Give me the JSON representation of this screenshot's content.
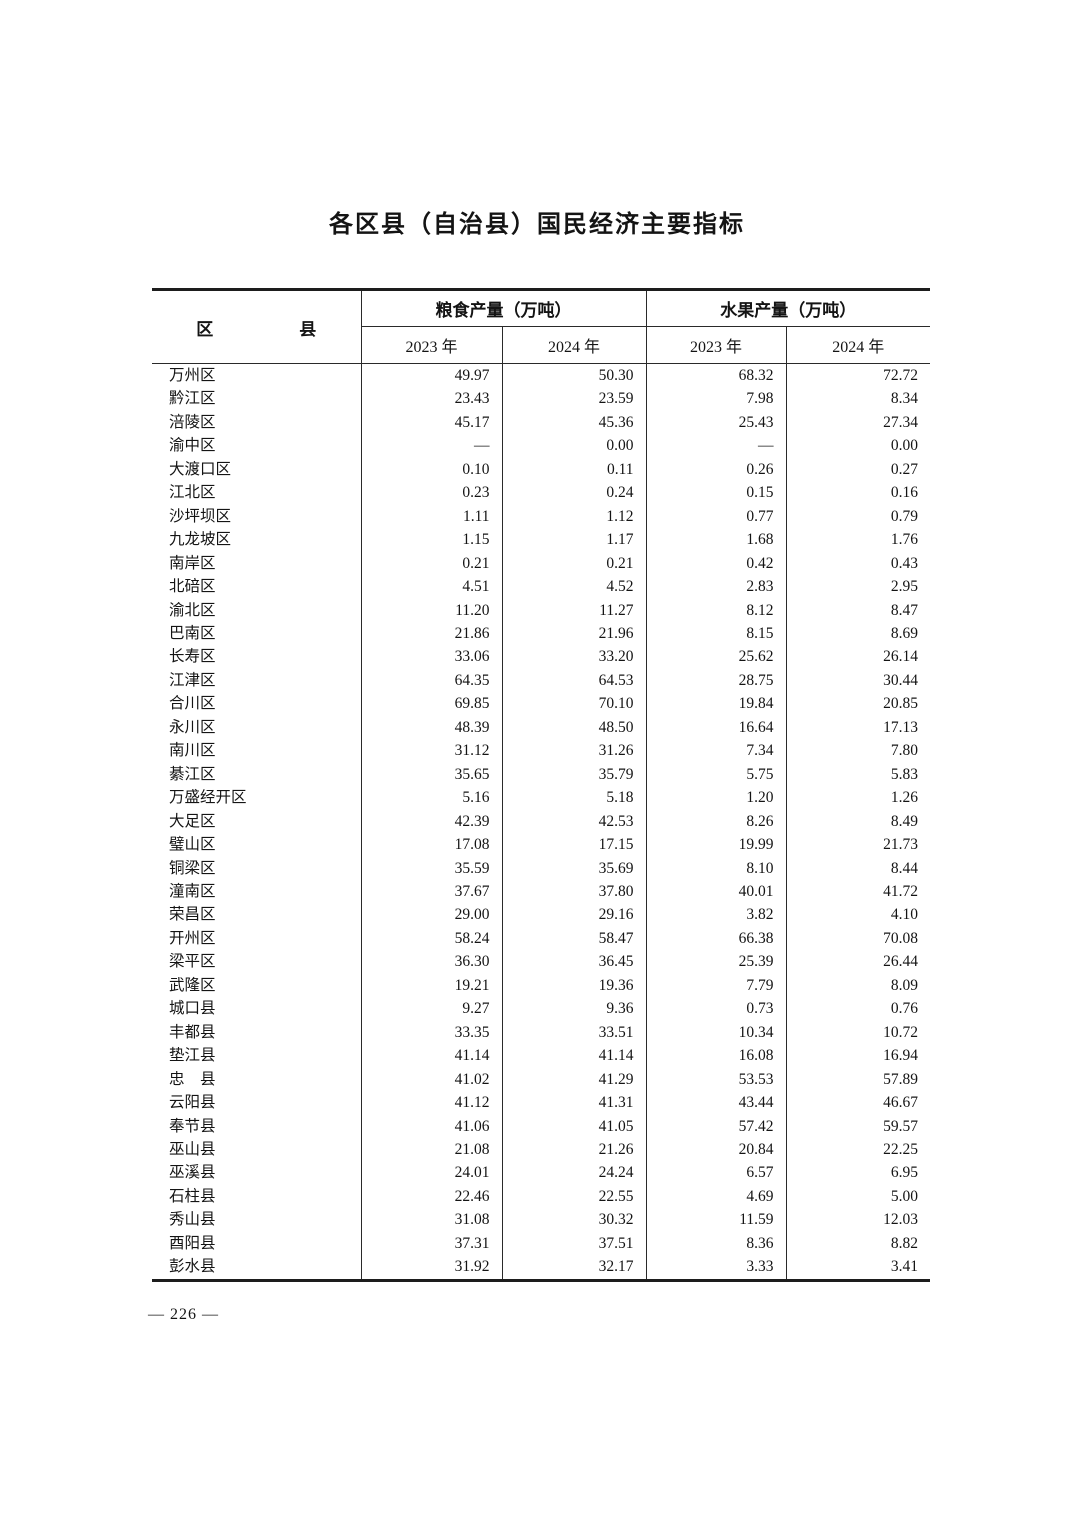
{
  "page": {
    "title": "各区县（自治县）国民经济主要指标",
    "footer_page_number": "— 226 —"
  },
  "table": {
    "corner_header": {
      "left": "区",
      "right": "县"
    },
    "group_headers": {
      "grain": "粮食产量（万吨）",
      "fruit": "水果产量（万吨）"
    },
    "year_headers": {
      "grain_2023": "2023 年",
      "grain_2024": "2024 年",
      "fruit_2023": "2023 年",
      "fruit_2024": "2024 年"
    },
    "rows": [
      {
        "district": "万州区",
        "values": [
          "49.97",
          "50.30",
          "68.32",
          "72.72"
        ]
      },
      {
        "district": "黔江区",
        "values": [
          "23.43",
          "23.59",
          "7.98",
          "8.34"
        ]
      },
      {
        "district": "涪陵区",
        "values": [
          "45.17",
          "45.36",
          "25.43",
          "27.34"
        ]
      },
      {
        "district": "渝中区",
        "values": [
          "—",
          "0.00",
          "—",
          "0.00"
        ]
      },
      {
        "district": "大渡口区",
        "values": [
          "0.10",
          "0.11",
          "0.26",
          "0.27"
        ]
      },
      {
        "district": "江北区",
        "values": [
          "0.23",
          "0.24",
          "0.15",
          "0.16"
        ]
      },
      {
        "district": "沙坪坝区",
        "values": [
          "1.11",
          "1.12",
          "0.77",
          "0.79"
        ]
      },
      {
        "district": "九龙坡区",
        "values": [
          "1.15",
          "1.17",
          "1.68",
          "1.76"
        ]
      },
      {
        "district": "南岸区",
        "values": [
          "0.21",
          "0.21",
          "0.42",
          "0.43"
        ]
      },
      {
        "district": "北碚区",
        "values": [
          "4.51",
          "4.52",
          "2.83",
          "2.95"
        ]
      },
      {
        "district": "渝北区",
        "values": [
          "11.20",
          "11.27",
          "8.12",
          "8.47"
        ]
      },
      {
        "district": "巴南区",
        "values": [
          "21.86",
          "21.96",
          "8.15",
          "8.69"
        ]
      },
      {
        "district": "长寿区",
        "values": [
          "33.06",
          "33.20",
          "25.62",
          "26.14"
        ]
      },
      {
        "district": "江津区",
        "values": [
          "64.35",
          "64.53",
          "28.75",
          "30.44"
        ]
      },
      {
        "district": "合川区",
        "values": [
          "69.85",
          "70.10",
          "19.84",
          "20.85"
        ]
      },
      {
        "district": "永川区",
        "values": [
          "48.39",
          "48.50",
          "16.64",
          "17.13"
        ]
      },
      {
        "district": "南川区",
        "values": [
          "31.12",
          "31.26",
          "7.34",
          "7.80"
        ]
      },
      {
        "district": "綦江区",
        "values": [
          "35.65",
          "35.79",
          "5.75",
          "5.83"
        ]
      },
      {
        "district": "万盛经开区",
        "values": [
          "5.16",
          "5.18",
          "1.20",
          "1.26"
        ]
      },
      {
        "district": "大足区",
        "values": [
          "42.39",
          "42.53",
          "8.26",
          "8.49"
        ]
      },
      {
        "district": "璧山区",
        "values": [
          "17.08",
          "17.15",
          "19.99",
          "21.73"
        ]
      },
      {
        "district": "铜梁区",
        "values": [
          "35.59",
          "35.69",
          "8.10",
          "8.44"
        ]
      },
      {
        "district": "潼南区",
        "values": [
          "37.67",
          "37.80",
          "40.01",
          "41.72"
        ]
      },
      {
        "district": "荣昌区",
        "values": [
          "29.00",
          "29.16",
          "3.82",
          "4.10"
        ]
      },
      {
        "district": "开州区",
        "values": [
          "58.24",
          "58.47",
          "66.38",
          "70.08"
        ]
      },
      {
        "district": "梁平区",
        "values": [
          "36.30",
          "36.45",
          "25.39",
          "26.44"
        ]
      },
      {
        "district": "武隆区",
        "values": [
          "19.21",
          "19.36",
          "7.79",
          "8.09"
        ]
      },
      {
        "district": "城口县",
        "values": [
          "9.27",
          "9.36",
          "0.73",
          "0.76"
        ]
      },
      {
        "district": "丰都县",
        "values": [
          "33.35",
          "33.51",
          "10.34",
          "10.72"
        ]
      },
      {
        "district": "垫江县",
        "values": [
          "41.14",
          "41.14",
          "16.08",
          "16.94"
        ]
      },
      {
        "district": "忠　县",
        "values": [
          "41.02",
          "41.29",
          "53.53",
          "57.89"
        ]
      },
      {
        "district": "云阳县",
        "values": [
          "41.12",
          "41.31",
          "43.44",
          "46.67"
        ]
      },
      {
        "district": "奉节县",
        "values": [
          "41.06",
          "41.05",
          "57.42",
          "59.57"
        ]
      },
      {
        "district": "巫山县",
        "values": [
          "21.08",
          "21.26",
          "20.84",
          "22.25"
        ]
      },
      {
        "district": "巫溪县",
        "values": [
          "24.01",
          "24.24",
          "6.57",
          "6.95"
        ]
      },
      {
        "district": "石柱县",
        "values": [
          "22.46",
          "22.55",
          "4.69",
          "5.00"
        ]
      },
      {
        "district": "秀山县",
        "values": [
          "31.08",
          "30.32",
          "11.59",
          "12.03"
        ]
      },
      {
        "district": "酉阳县",
        "values": [
          "37.31",
          "37.51",
          "8.36",
          "8.82"
        ]
      },
      {
        "district": "彭水县",
        "values": [
          "31.92",
          "32.17",
          "3.33",
          "3.41"
        ]
      }
    ]
  }
}
